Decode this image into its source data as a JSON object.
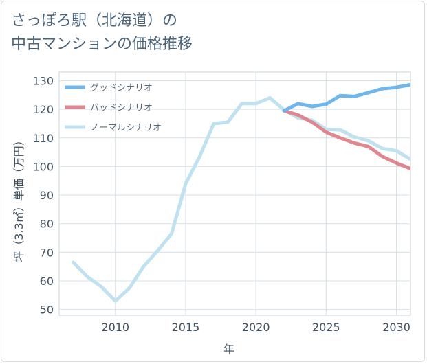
{
  "title": "さっぽろ駅（北海道）の\n中古マンションの価格推移",
  "chart_data": {
    "type": "line",
    "xlabel": "年",
    "ylabel": "坪（3.3㎡）単価（万円）",
    "xlim": [
      2006,
      2031
    ],
    "ylim": [
      48,
      133
    ],
    "xticks": [
      2010,
      2015,
      2020,
      2025,
      2030
    ],
    "yticks": [
      50,
      60,
      70,
      80,
      90,
      100,
      110,
      120,
      130
    ],
    "grid": true,
    "legend_position": "top-left",
    "series": [
      {
        "name": "グッドシナリオ",
        "color": "#6fb6ec",
        "x": [
          2022,
          2023,
          2024,
          2025,
          2026,
          2027,
          2028,
          2029,
          2030,
          2031
        ],
        "y": [
          119.5,
          122,
          121,
          121.8,
          124.8,
          124.5,
          125.8,
          127.2,
          127.7,
          128.6
        ]
      },
      {
        "name": "バッドシナリオ",
        "color": "#e0868f",
        "x": [
          2022,
          2023,
          2024,
          2025,
          2026,
          2027,
          2028,
          2029,
          2030,
          2031
        ],
        "y": [
          119.5,
          118,
          115.5,
          112,
          110,
          108.2,
          107,
          103.5,
          101.2,
          99.3
        ]
      },
      {
        "name": "ノーマルシナリオ",
        "color": "#bfe1f0",
        "x": [
          2007,
          2008,
          2009,
          2010,
          2011,
          2012,
          2013,
          2014,
          2015,
          2016,
          2017,
          2018,
          2019,
          2020,
          2021,
          2022,
          2023,
          2024,
          2025,
          2026,
          2027,
          2028,
          2029,
          2030,
          2031
        ],
        "y": [
          66.5,
          61.5,
          58,
          53,
          57.5,
          65,
          70.5,
          76.5,
          94,
          103.5,
          115,
          115.5,
          122,
          122,
          124,
          119.8,
          117,
          116.2,
          113,
          112.8,
          110.3,
          109,
          106.3,
          105.5,
          102.5
        ]
      }
    ]
  }
}
